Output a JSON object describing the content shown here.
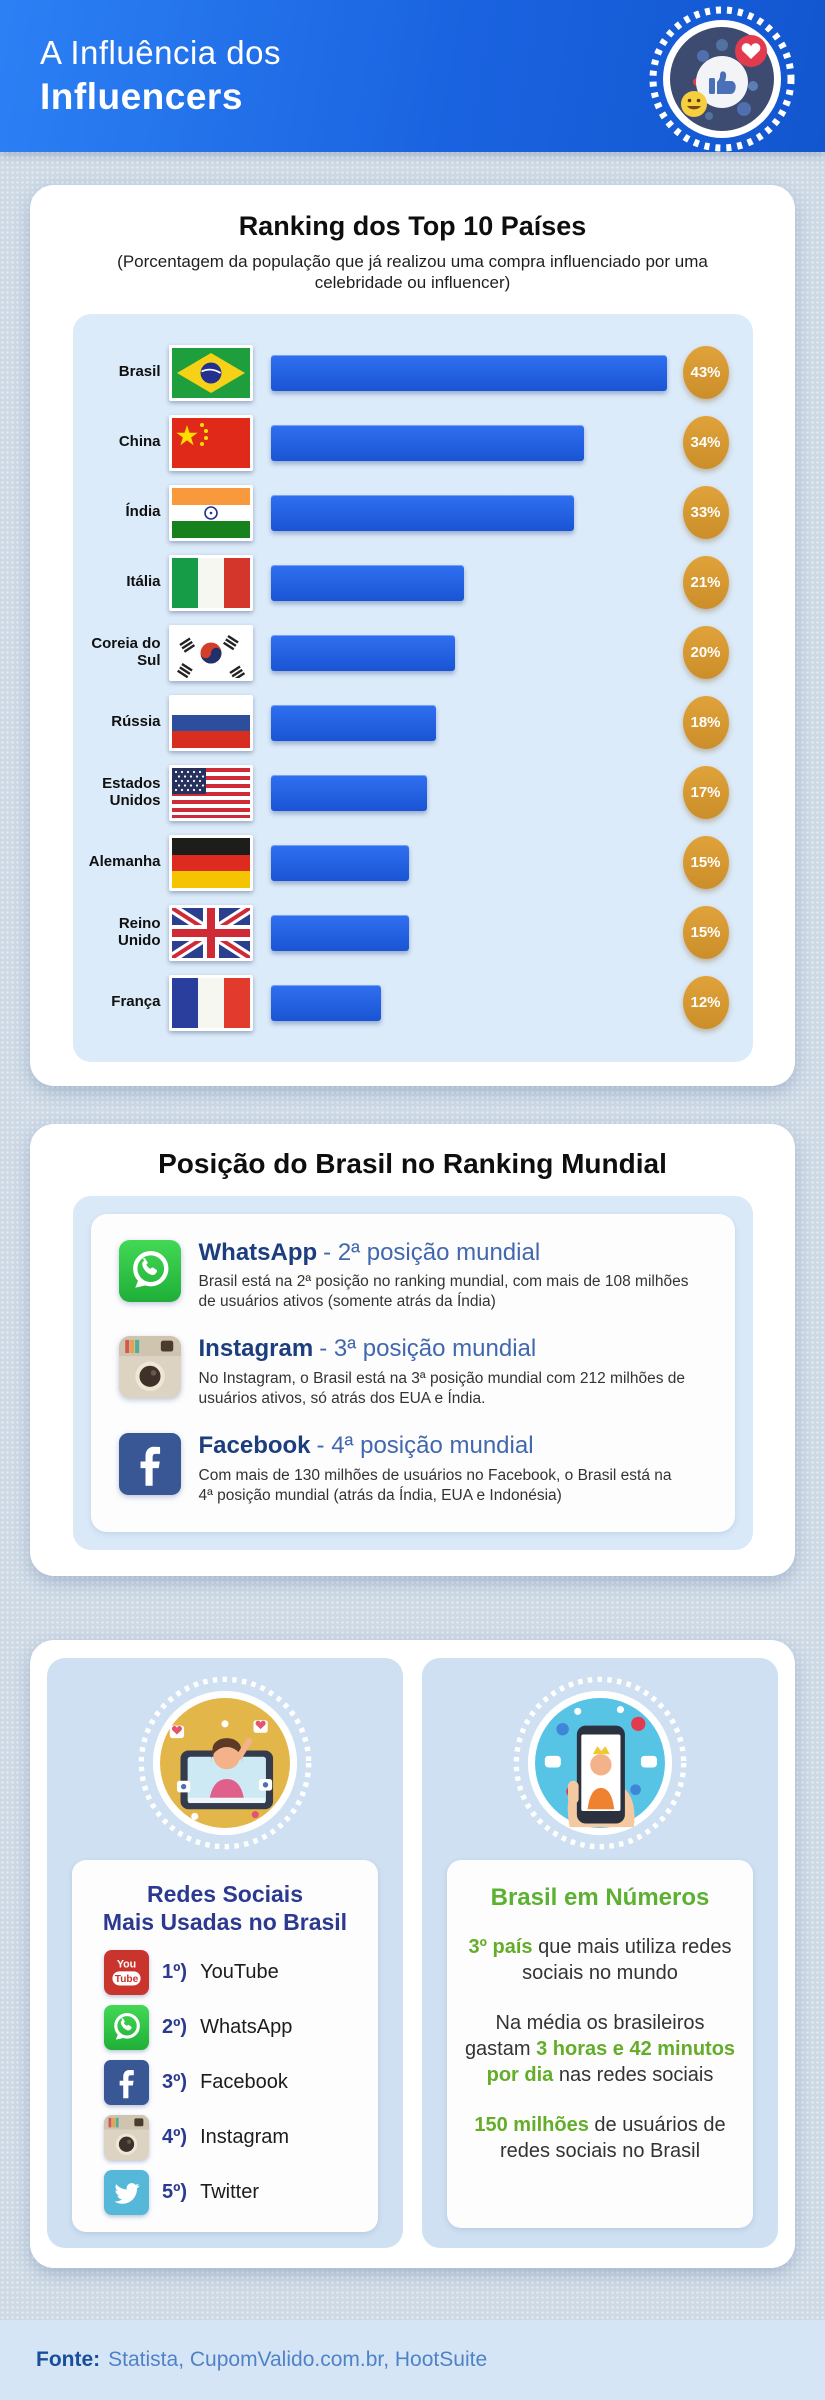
{
  "header": {
    "title_line1": "A Influência dos",
    "title_line2": "Influencers",
    "badge_icon": "social-likes-badge-icon"
  },
  "chart_data": {
    "type": "bar",
    "orientation": "horizontal",
    "title": "Ranking dos Top 10 Países",
    "subtitle": "(Porcentagem da população que já realizou uma compra influenciado por uma celebridade ou influencer)",
    "categories": [
      "Brasil",
      "China",
      "Índia",
      "Itália",
      "Coreia do Sul",
      "Rússia",
      "Estados Unidos",
      "Alemanha",
      "Reino Unido",
      "França"
    ],
    "values": [
      43,
      34,
      33,
      21,
      20,
      18,
      17,
      15,
      15,
      12
    ],
    "value_labels": [
      "43%",
      "34%",
      "33%",
      "21%",
      "20%",
      "18%",
      "17%",
      "15%",
      "15%",
      "12%"
    ],
    "unit": "%",
    "xlim": [
      0,
      43
    ],
    "grid": false,
    "legend": false,
    "flags": [
      "brazil-flag-icon",
      "china-flag-icon",
      "india-flag-icon",
      "italy-flag-icon",
      "south-korea-flag-icon",
      "russia-flag-icon",
      "usa-flag-icon",
      "germany-flag-icon",
      "uk-flag-icon",
      "france-flag-icon"
    ],
    "bar_color": "#2063e6",
    "badge_color": "#d6952e"
  },
  "positions": {
    "title": "Posição do Brasil no Ranking Mundial",
    "items": [
      {
        "icon": "whatsapp-icon",
        "app": "WhatsApp",
        "position": "- 2ª posição mundial",
        "description": "Brasil está na 2ª posição no ranking mundial, com mais de 108 milhões de usuários ativos (somente atrás da Índia)"
      },
      {
        "icon": "instagram-icon",
        "app": "Instagram",
        "position": "- 3ª posição mundial",
        "description": "No Instagram, o Brasil está na 3ª posição mundial com 212 milhões de usuários ativos, só atrás dos EUA e Índia."
      },
      {
        "icon": "facebook-icon",
        "app": "Facebook",
        "position": "- 4ª posição mundial",
        "description": "Com mais de 130 milhões de usuários no Facebook, o Brasil está na 4ª posição mundial (atrás da Índia, EUA e Indonésia)"
      }
    ]
  },
  "bottom": {
    "left_card": {
      "illustration": "influencer-video-illustration",
      "title_line1": "Redes Sociais",
      "title_line2": "Mais Usadas no Brasil",
      "items": [
        {
          "icon": "youtube-icon",
          "rank": "1º)",
          "name": "YouTube"
        },
        {
          "icon": "whatsapp-icon",
          "rank": "2º)",
          "name": "WhatsApp"
        },
        {
          "icon": "facebook-icon",
          "rank": "3º)",
          "name": "Facebook"
        },
        {
          "icon": "instagram-icon",
          "rank": "4º)",
          "name": "Instagram"
        },
        {
          "icon": "twitter-icon",
          "rank": "5º)",
          "name": "Twitter"
        }
      ]
    },
    "right_card": {
      "illustration": "phone-social-illustration",
      "title": "Brasil em Números",
      "highlight_color": "#64ad28",
      "paragraphs": [
        [
          {
            "text": "3º país",
            "highlight": true
          },
          {
            "text": " que mais utiliza redes sociais no mundo",
            "highlight": false
          }
        ],
        [
          {
            "text": "Na média os brasileiros gastam ",
            "highlight": false
          },
          {
            "text": "3 horas e 42 minutos por dia",
            "highlight": true
          },
          {
            "text": " nas redes sociais",
            "highlight": false
          }
        ],
        [
          {
            "text": "150 milhões",
            "highlight": true
          },
          {
            "text": " de usuários de redes sociais no Brasil",
            "highlight": false
          }
        ]
      ]
    }
  },
  "footer": {
    "label": "Fonte:",
    "sources": "Statista, CupomValido.com.br, HootSuite"
  },
  "colors": {
    "header_blue": "#1f6ae6",
    "bar_blue": "#2063e6",
    "badge_orange": "#d6952e",
    "panel_blue": "#dcebf9",
    "indigo": "#2b3990",
    "green": "#64ad28",
    "app_name_blue": "#1c3e7e",
    "app_position_blue": "#4168ae",
    "footer_label_blue": "#184f9b",
    "footer_text_blue": "#4f83c6",
    "page_background": "#cdd9e5"
  }
}
